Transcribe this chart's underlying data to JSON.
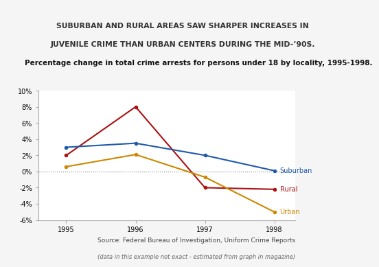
{
  "title_line1": "SUBURBAN AND RURAL AREAS SAW SHARPER INCREASES IN",
  "title_line2": "JUVENILE CRIME THAN URBAN CENTERS DURING THE MID-’90S.",
  "subtitle": "Percentage change in total crime arrests for persons under 18 by locality, 1995-1998.",
  "source_line1": "Source: Federal Bureau of Investigation, Uniform Crime Reports",
  "source_line2": "(data in this example not exact - estimated from graph in magazine)",
  "years": [
    1995,
    1996,
    1997,
    1998
  ],
  "suburban": [
    3.0,
    3.5,
    2.0,
    0.1
  ],
  "rural": [
    2.0,
    8.0,
    -2.0,
    -2.2
  ],
  "urban": [
    0.6,
    2.1,
    -0.7,
    -5.0
  ],
  "suburban_color": "#1f5aaa",
  "rural_color": "#aa1111",
  "urban_color": "#cc8800",
  "ylim": [
    -6,
    10
  ],
  "yticks": [
    -6,
    -4,
    -2,
    0,
    2,
    4,
    6,
    8,
    10
  ],
  "header_bg": "#e8e8e8",
  "plot_bg_color": "#ffffff",
  "fig_bg_color": "#f5f5f5",
  "title_fontsize": 7.8,
  "subtitle_fontsize": 7.5,
  "tick_fontsize": 7,
  "label_fontsize": 7,
  "source_fontsize": 6.5
}
